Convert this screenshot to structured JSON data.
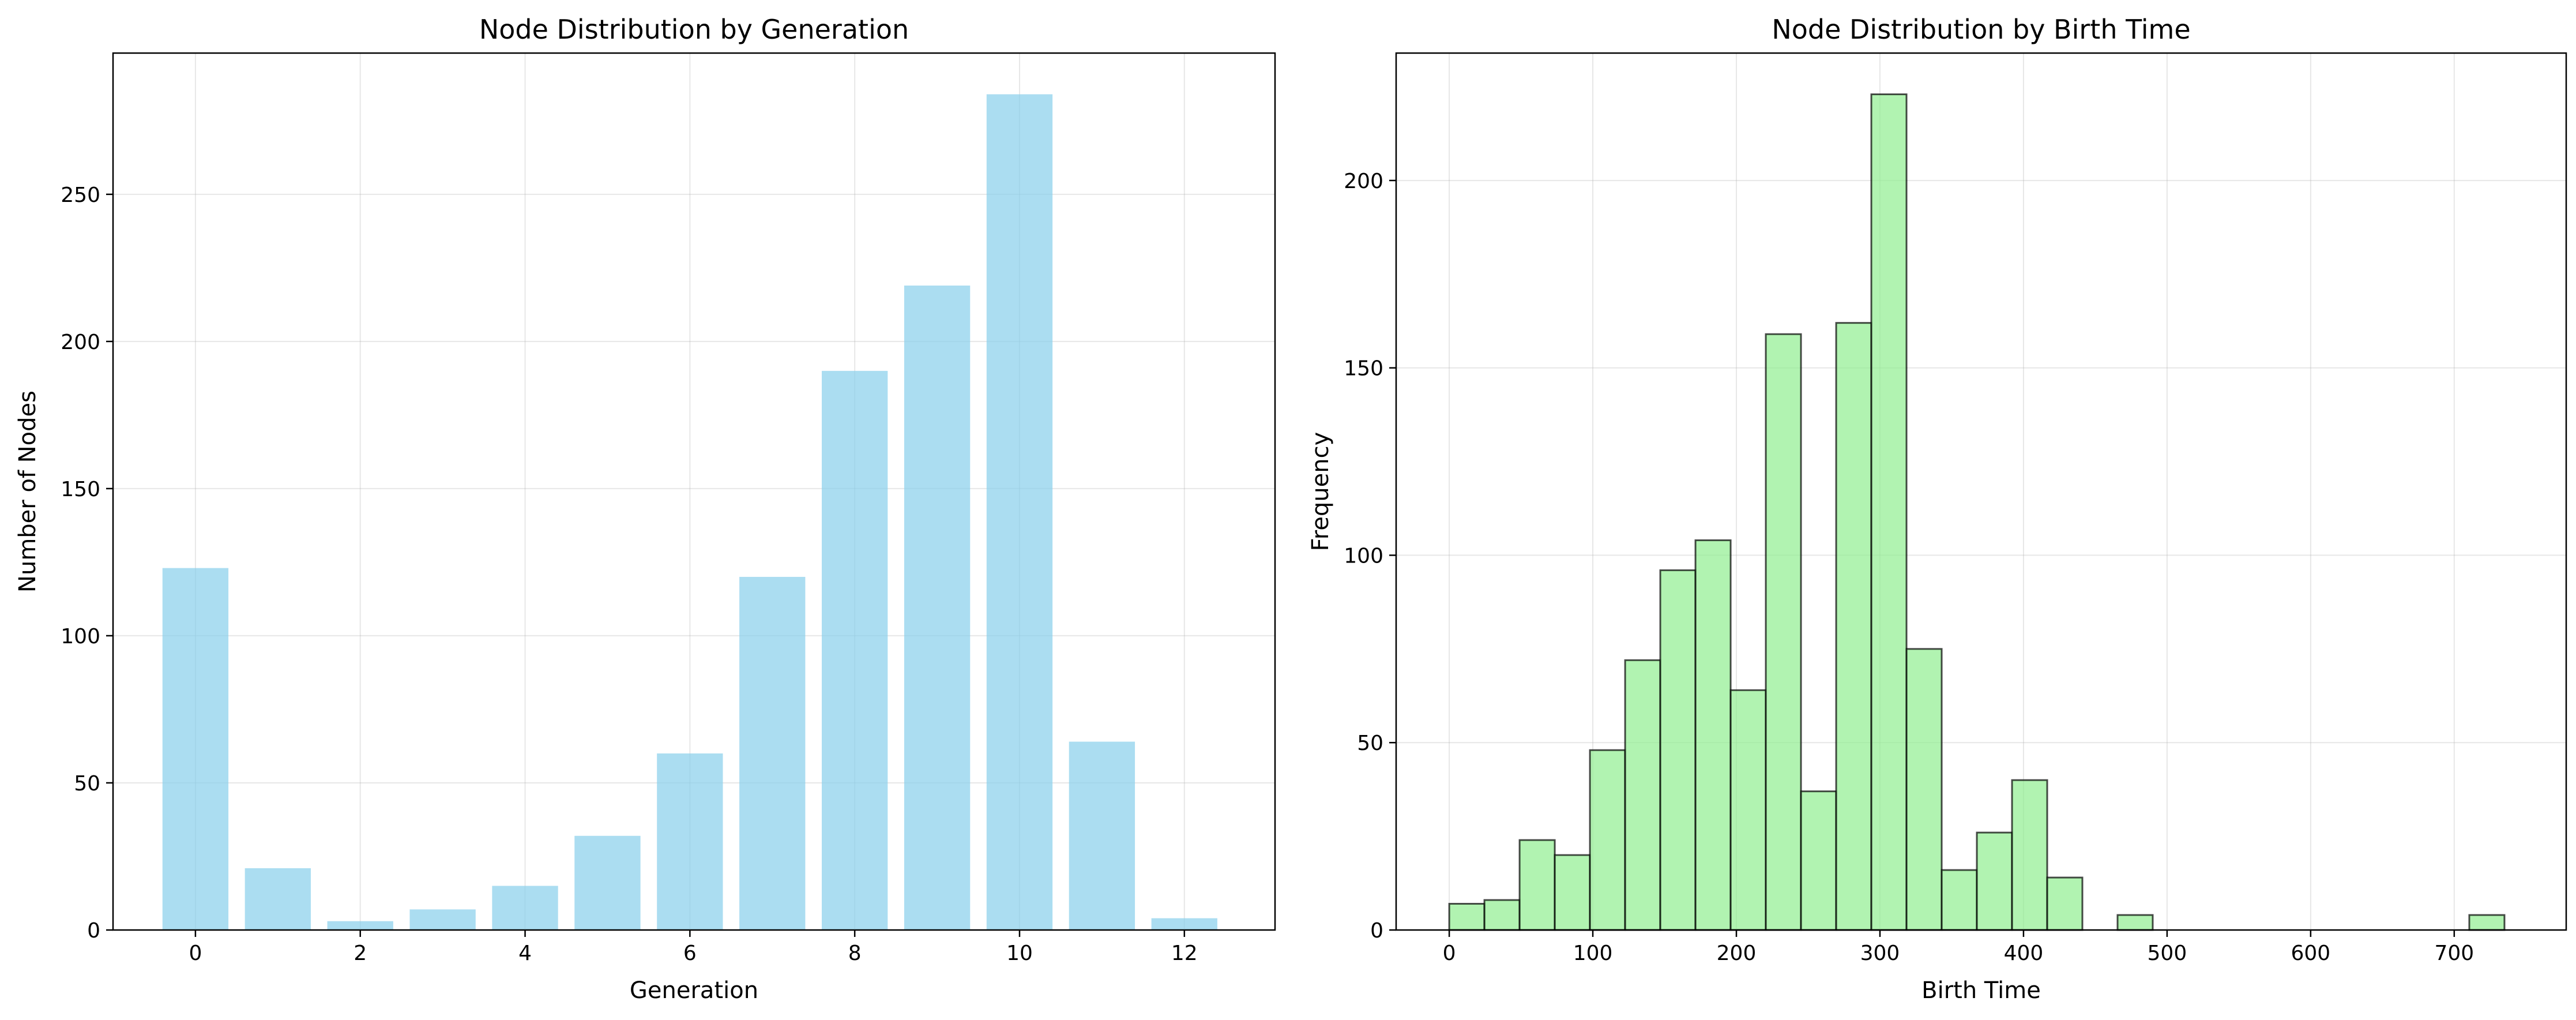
{
  "chart_data": [
    {
      "type": "bar",
      "title": "Node Distribution by Generation",
      "xlabel": "Generation",
      "ylabel": "Number of Nodes",
      "x": [
        0,
        1,
        2,
        3,
        4,
        5,
        6,
        7,
        8,
        9,
        10,
        11,
        12
      ],
      "values": [
        123,
        21,
        3,
        7,
        15,
        32,
        60,
        120,
        190,
        219,
        284,
        64,
        4
      ],
      "xlim": [
        -1,
        13.1
      ],
      "ylim": [
        0,
        298
      ],
      "xticks": [
        0,
        2,
        4,
        6,
        8,
        10,
        12
      ],
      "yticks": [
        0,
        50,
        100,
        150,
        200,
        250
      ],
      "grid": true,
      "bar_color": "#87ceeb",
      "bar_opacity": 0.7
    },
    {
      "type": "bar",
      "subtype": "histogram",
      "title": "Node Distribution by Birth Time",
      "xlabel": "Birth Time",
      "ylabel": "Frequency",
      "bin_start": 0,
      "bin_width": 24.5,
      "values": [
        7,
        8,
        24,
        20,
        48,
        72,
        96,
        104,
        64,
        159,
        37,
        162,
        223,
        75,
        16,
        26,
        40,
        14,
        0,
        4,
        0,
        0,
        0,
        0,
        0,
        0,
        0,
        0,
        0,
        4
      ],
      "xlim": [
        -37,
        778
      ],
      "ylim": [
        0,
        234
      ],
      "xticks": [
        0,
        100,
        200,
        300,
        400,
        500,
        600,
        700
      ],
      "yticks": [
        0,
        50,
        100,
        150,
        200
      ],
      "grid": true,
      "bar_color": "#90ee90",
      "bar_opacity": 0.7,
      "edge_color": "#000000"
    }
  ]
}
